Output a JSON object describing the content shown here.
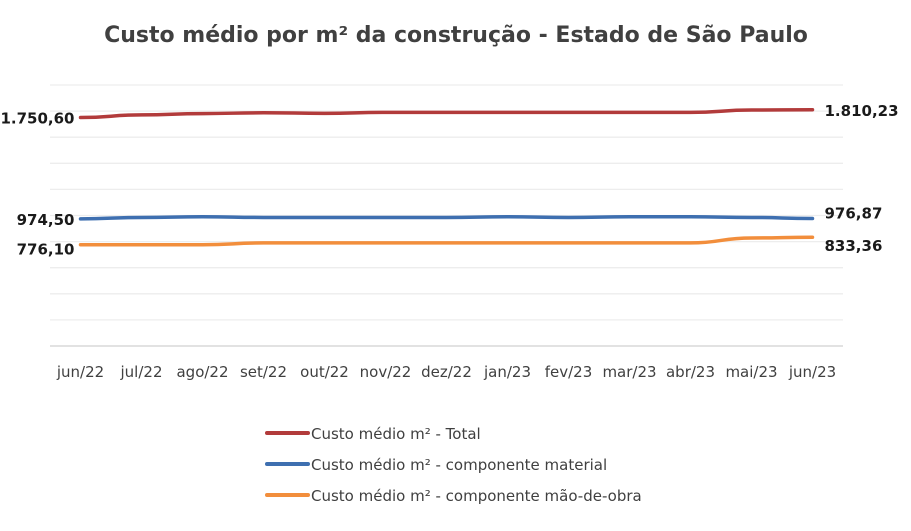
{
  "chart_data": {
    "type": "line",
    "title": "Custo médio por m² da construção - Estado de São Paulo",
    "xlabel": "",
    "ylabel": "",
    "ylim": [
      0,
      2000
    ],
    "y_gridline_step": 200,
    "grid": true,
    "y_tick_labels_visible": false,
    "legend_placement": "bottom",
    "categories": [
      "jun/22",
      "jul/22",
      "ago/22",
      "set/22",
      "out/22",
      "nov/22",
      "dez/22",
      "jan/23",
      "fev/23",
      "mar/23",
      "abr/23",
      "mai/23",
      "jun/23"
    ],
    "series": [
      {
        "name": "Custo médio m² - Total",
        "color": "#b23b3b",
        "values": [
          1750.6,
          1771,
          1781,
          1787,
          1783,
          1790,
          1790,
          1790,
          1790,
          1790,
          1790,
          1808,
          1810.23
        ],
        "labels": {
          "first": "1.750,60",
          "last": "1.810,23"
        }
      },
      {
        "name": "Custo médio m² - componente material",
        "color": "#3e6fb0",
        "values": [
          974.5,
          985,
          990,
          985,
          985,
          985,
          985,
          990,
          985,
          990,
          990,
          985,
          976.87
        ],
        "labels": {
          "first": "974,50",
          "last": "976,87"
        }
      },
      {
        "name": "Custo médio m² - componente mão-de-obra",
        "color": "#f28e3c",
        "values": [
          776.1,
          776,
          776,
          790,
          790,
          790,
          790,
          790,
          790,
          790,
          790,
          828,
          833.36
        ],
        "labels": {
          "first": "776,10",
          "last": "833,36"
        }
      }
    ]
  }
}
